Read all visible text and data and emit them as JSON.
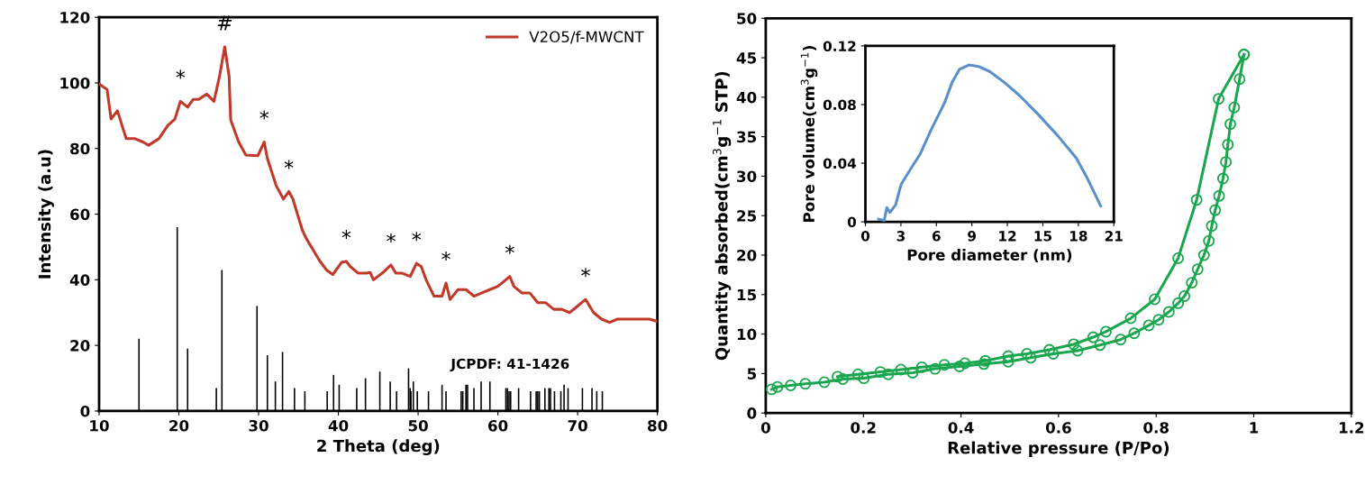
{
  "chart_data": [
    {
      "type": "line",
      "xlabel": "2 Theta (deg)",
      "ylabel": "Intensity (a.u)",
      "xlim": [
        10,
        80
      ],
      "xticks": [
        10,
        20,
        30,
        40,
        50,
        60,
        70,
        80
      ],
      "ylim": [
        0,
        120
      ],
      "yticks": [
        0,
        20,
        40,
        60,
        80,
        100,
        120
      ],
      "legend": "top right",
      "marker": "none",
      "line_style": "solid",
      "series": [
        {
          "name": "V2O5/f-MWCNT",
          "color": "#c0392b",
          "x": [
            10.1,
            11,
            11.5,
            12.3,
            13.4,
            14.5,
            15.5,
            16.2,
            17.5,
            18.6,
            19.5,
            20.2,
            21.1,
            21.8,
            22.5,
            23.5,
            24.4,
            25.1,
            25.75,
            26.3,
            26.5,
            27.5,
            28.4,
            29.9,
            30.7,
            31.1,
            32.2,
            33.1,
            33.8,
            34.3,
            35,
            35.5,
            36,
            37.6,
            38.5,
            39.3,
            40.4,
            41,
            41.5,
            42.5,
            43.5,
            44,
            44.4,
            45.5,
            46.6,
            47.2,
            48,
            49,
            49.8,
            50.4,
            51,
            52,
            53,
            53.5,
            54,
            55,
            56,
            57,
            58,
            59,
            60,
            61,
            61.5,
            62,
            63,
            64,
            65,
            66,
            67,
            68,
            69,
            70,
            71,
            72,
            73,
            74,
            75,
            77,
            79,
            80
          ],
          "values": [
            99.5,
            98,
            89,
            91.5,
            83,
            83,
            82,
            81,
            83,
            87,
            89,
            94.4,
            92.6,
            95,
            95,
            96.6,
            94.4,
            102,
            111,
            102,
            88.7,
            82,
            78,
            77.8,
            82,
            77,
            68.7,
            64.6,
            66.9,
            64.6,
            59,
            55,
            52.5,
            46,
            43,
            41.6,
            45.3,
            45.6,
            44,
            42,
            42,
            42.2,
            40,
            42,
            44.5,
            42,
            42,
            41,
            45,
            44,
            40,
            35,
            35,
            39,
            34,
            37,
            37,
            35,
            36,
            37,
            38,
            40,
            41,
            38,
            36,
            36,
            33,
            33,
            31,
            31,
            30,
            32,
            34,
            30,
            28,
            27,
            28,
            28,
            28,
            27.3
          ]
        },
        {
          "name": "JCPDF: 41-1426",
          "type": "bar",
          "color": "#000000",
          "x": [
            15.0,
            19.8,
            21.1,
            24.7,
            25.4,
            29.8,
            31.1,
            32.1,
            33.0,
            34.5,
            35.8,
            38.6,
            39.4,
            40.1,
            42.3,
            43.4,
            45.2,
            46.5,
            47.3,
            48.8,
            49.0,
            49.1,
            49.4,
            49.9,
            51.3,
            53.0,
            53.5,
            55.4,
            55.6,
            56.0,
            56.2,
            57.0,
            57.9,
            59.0,
            61.0,
            61.2,
            61.4,
            61.6,
            62.6,
            64.1,
            64.8,
            65.0,
            65.2,
            65.9,
            66.4,
            66.6,
            67.1,
            67.9,
            68.3,
            68.8,
            70.6,
            71.8,
            72.4,
            73.1
          ],
          "values": [
            22,
            56,
            19,
            7,
            43,
            32,
            17,
            9,
            18,
            7,
            6,
            6,
            11,
            8,
            7,
            10,
            12,
            9,
            6,
            13,
            7,
            6,
            9,
            6,
            6,
            8,
            6,
            6,
            6,
            8,
            8,
            7,
            9,
            9,
            7,
            7,
            6,
            6,
            7,
            6,
            6,
            6,
            6,
            7,
            7,
            7,
            6,
            6,
            8,
            7,
            7,
            7,
            6,
            6
          ]
        }
      ],
      "annotations": [
        {
          "text": "*",
          "x": 20.2,
          "y": 94.4
        },
        {
          "text": "#",
          "x": 25.75,
          "y": 111
        },
        {
          "text": "*",
          "x": 30.7,
          "y": 82
        },
        {
          "text": "*",
          "x": 33.8,
          "y": 66.9
        },
        {
          "text": "*",
          "x": 41,
          "y": 45.6
        },
        {
          "text": "*",
          "x": 46.6,
          "y": 44.5
        },
        {
          "text": "*",
          "x": 49.8,
          "y": 45
        },
        {
          "text": "*",
          "x": 53.5,
          "y": 39
        },
        {
          "text": "*",
          "x": 61.5,
          "y": 41
        },
        {
          "text": "*",
          "x": 71,
          "y": 34
        }
      ]
    },
    {
      "type": "line",
      "xlabel": "Relative pressure (P/Po)",
      "ylabel": "Quantity absorbed(cm$^{3}$g$^{−1}$ STP)",
      "xlim": [
        0,
        1.2
      ],
      "xticks": [
        0,
        0.2,
        0.4,
        0.6,
        0.8,
        1,
        1.2
      ],
      "ylim": [
        0,
        50
      ],
      "yticks": [
        0,
        5,
        10,
        15,
        20,
        25,
        30,
        35,
        40,
        45,
        50
      ],
      "marker": "circle",
      "line_style": "solid",
      "series": [
        {
          "color": "#1aa64f",
          "x": [
            0.012,
            0.024,
            0.051,
            0.081,
            0.12,
            0.158,
            0.201,
            0.251,
            0.301,
            0.347,
            0.397,
            0.447,
            0.497,
            0.543,
            0.589,
            0.639,
            0.685,
            0.727,
            0.755,
            0.785,
            0.805,
            0.826,
            0.845,
            0.858,
            0.873,
            0.885,
            0.898,
            0.908,
            0.914,
            0.921,
            0.929,
            0.937,
            0.943,
            0.947,
            0.952,
            0.96,
            0.971,
            0.98
          ],
          "values": [
            3.0,
            3.3,
            3.5,
            3.7,
            3.9,
            4.3,
            4.4,
            4.9,
            5.1,
            5.6,
            5.9,
            6.2,
            6.5,
            7.0,
            7.5,
            7.9,
            8.6,
            9.3,
            10.1,
            11.1,
            11.8,
            12.8,
            13.9,
            14.8,
            16.5,
            18.2,
            20,
            21.8,
            23.7,
            25.7,
            27.5,
            29.7,
            31.8,
            34,
            36.6,
            38.7,
            42.3,
            45.4
          ]
        },
        {
          "color": "#1aa64f",
          "x": [
            0.98,
            0.928,
            0.883,
            0.845,
            0.797,
            0.748,
            0.697,
            0.671,
            0.631,
            0.581,
            0.535,
            0.497,
            0.45,
            0.408,
            0.366,
            0.32,
            0.277,
            0.235,
            0.189,
            0.147
          ],
          "values": [
            45.4,
            39.8,
            27,
            19.6,
            14.4,
            12,
            10.3,
            9.6,
            8.7,
            8,
            7.5,
            7.2,
            6.6,
            6.3,
            6.1,
            5.8,
            5.5,
            5.2,
            4.9,
            4.6
          ]
        }
      ]
    },
    {
      "type": "line",
      "xlabel": "Pore diameter (nm)",
      "ylabel": "Pore volume(cm$^{3}$g$^{−1}$)",
      "xlim": [
        0,
        21
      ],
      "xticks": [
        0,
        3,
        6,
        9,
        12,
        15,
        18,
        21
      ],
      "ylim": [
        0,
        0.12
      ],
      "yticks": [
        0,
        0.04,
        0.08,
        0.12
      ],
      "marker": "none",
      "line_style": "solid",
      "series": [
        {
          "color": "#5b8fc9",
          "x": [
            1.11,
            1.59,
            1.81,
            2.07,
            2.55,
            3.02,
            3.82,
            4.61,
            5.57,
            6.68,
            7.32,
            7.95,
            8.75,
            9.55,
            10.5,
            11.77,
            13.05,
            14.64,
            16.23,
            17.82,
            18.77,
            19.89
          ],
          "values": [
            0.0018,
            0.001,
            0.0097,
            0.0064,
            0.0115,
            0.0256,
            0.036,
            0.046,
            0.063,
            0.081,
            0.095,
            0.104,
            0.107,
            0.106,
            0.1026,
            0.095,
            0.086,
            0.073,
            0.059,
            0.0436,
            0.0295,
            0.0108
          ]
        }
      ]
    }
  ]
}
